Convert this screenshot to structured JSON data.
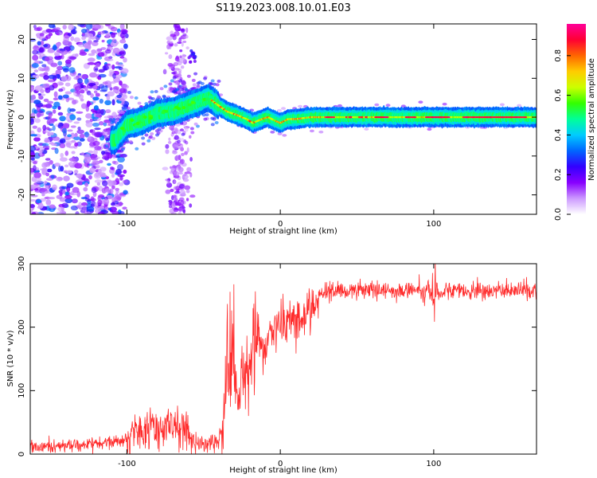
{
  "title": "S119.2023.008.10.01.E03",
  "chart_data": [
    {
      "type": "heatmap",
      "xlabel": "Height of straight line (km)",
      "ylabel": "Frequency (Hz)",
      "xlim": [
        -163,
        167
      ],
      "ylim": [
        -25,
        24
      ],
      "xticks": [
        -100,
        0,
        100
      ],
      "yticks": [
        -20,
        -10,
        0,
        10,
        20
      ],
      "colorbar": {
        "label": "Normalized spectral amplitude",
        "ticks": [
          0.0,
          0.2,
          0.4,
          0.6,
          0.8
        ],
        "range": [
          0,
          0.96
        ],
        "colors": [
          "#ffffff",
          "#cc99ff",
          "#8800ff",
          "#3300ff",
          "#0066ff",
          "#00ccff",
          "#00ff99",
          "#33ff00",
          "#ccff00",
          "#ffcc00",
          "#ff6600",
          "#ff0033",
          "#ff0099"
        ]
      },
      "ridge": {
        "x": [
          -108,
          -100,
          -90,
          -80,
          -70,
          -60,
          -53,
          -47,
          -42,
          -35,
          -28,
          -22,
          -18,
          -12,
          -8,
          -3,
          0,
          5,
          10,
          20,
          40,
          80,
          120,
          167
        ],
        "frequency": [
          -6,
          -2,
          -1,
          1,
          1.5,
          3,
          4,
          5,
          3.5,
          1.5,
          0.5,
          -0.5,
          -1.5,
          -0.5,
          0,
          -1,
          -1.5,
          -0.5,
          -0.5,
          0,
          0,
          0,
          0,
          0
        ]
      },
      "grid": false,
      "legend": "none"
    },
    {
      "type": "line",
      "xlabel": "Height of straight line (km)",
      "ylabel": "SNR (10 * v/v)",
      "xlim": [
        -163,
        167
      ],
      "ylim": [
        0,
        300
      ],
      "xticks": [
        -100,
        0,
        100
      ],
      "yticks": [
        0,
        100,
        200,
        300
      ],
      "color": "#ff2b2b",
      "series": [
        {
          "x": [
            -163,
            -150,
            -130,
            -110,
            -100,
            -95,
            -90,
            -85,
            -80,
            -75,
            -70,
            -65,
            -60,
            -55,
            -50,
            -45,
            -40,
            -37,
            -35,
            -33,
            -31,
            -29,
            -27,
            -25,
            -22,
            -20,
            -18,
            -15,
            -12,
            -10,
            -5,
            0,
            5,
            10,
            15,
            20,
            25,
            30,
            40,
            50,
            60,
            70,
            80,
            90,
            95,
            100,
            110,
            120,
            130,
            140,
            150,
            160,
            167
          ],
          "values": [
            10,
            12,
            14,
            18,
            22,
            35,
            40,
            45,
            38,
            42,
            40,
            42,
            35,
            20,
            15,
            18,
            20,
            60,
            110,
            150,
            120,
            90,
            110,
            130,
            140,
            150,
            160,
            175,
            170,
            165,
            190,
            200,
            210,
            220,
            205,
            235,
            250,
            255,
            258,
            257,
            258,
            258,
            257,
            260,
            255,
            258,
            258,
            257,
            258,
            258,
            257,
            258,
            258
          ]
        }
      ],
      "grid": false,
      "legend": "none"
    }
  ]
}
